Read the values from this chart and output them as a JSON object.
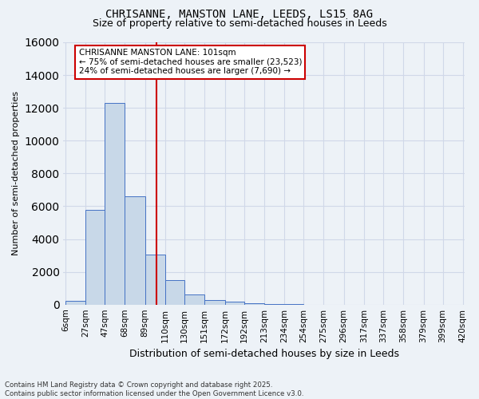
{
  "title": "CHRISANNE, MANSTON LANE, LEEDS, LS15 8AG",
  "subtitle": "Size of property relative to semi-detached houses in Leeds",
  "xlabel": "Distribution of semi-detached houses by size in Leeds",
  "ylabel": "Number of semi-detached properties",
  "property_label": "CHRISANNE MANSTON LANE: 101sqm",
  "pct_smaller": 75,
  "n_smaller": 23523,
  "pct_larger": 24,
  "n_larger": 7690,
  "bin_edges": [
    6,
    27,
    47,
    68,
    89,
    110,
    130,
    151,
    172,
    192,
    213,
    234,
    254,
    275,
    296,
    317,
    337,
    358,
    379,
    399,
    420
  ],
  "bin_labels": [
    "6sqm",
    "27sqm",
    "47sqm",
    "68sqm",
    "89sqm",
    "110sqm",
    "130sqm",
    "151sqm",
    "172sqm",
    "192sqm",
    "213sqm",
    "234sqm",
    "254sqm",
    "275sqm",
    "296sqm",
    "317sqm",
    "337sqm",
    "358sqm",
    "379sqm",
    "399sqm",
    "420sqm"
  ],
  "bar_values": [
    250,
    5800,
    12300,
    6600,
    3050,
    1480,
    620,
    280,
    160,
    90,
    50,
    10,
    0,
    0,
    0,
    0,
    0,
    0,
    0,
    0
  ],
  "bar_color": "#c8d8e8",
  "bar_edge_color": "#4472c4",
  "grid_color": "#d0d8e8",
  "vline_x": 101,
  "vline_color": "#cc0000",
  "annotation_box_color": "#cc0000",
  "background_color": "#edf2f7",
  "footer_text": "Contains HM Land Registry data © Crown copyright and database right 2025.\nContains public sector information licensed under the Open Government Licence v3.0.",
  "ylim": [
    0,
    16000
  ],
  "yticks": [
    0,
    2000,
    4000,
    6000,
    8000,
    10000,
    12000,
    14000,
    16000
  ]
}
